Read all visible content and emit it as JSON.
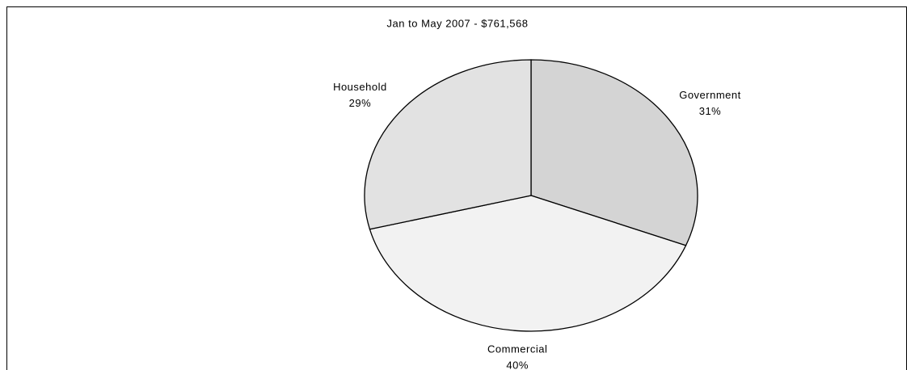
{
  "chart_data": {
    "type": "pie",
    "title": "Jan to May 2007 - $761,568",
    "categories": [
      "Government",
      "Commercial",
      "Household"
    ],
    "values": [
      31,
      40,
      29
    ],
    "value_labels": [
      "31%",
      "40%",
      "29%"
    ],
    "colors": [
      "#d4d4d4",
      "#f2f2f2",
      "#e2e2e2"
    ]
  }
}
